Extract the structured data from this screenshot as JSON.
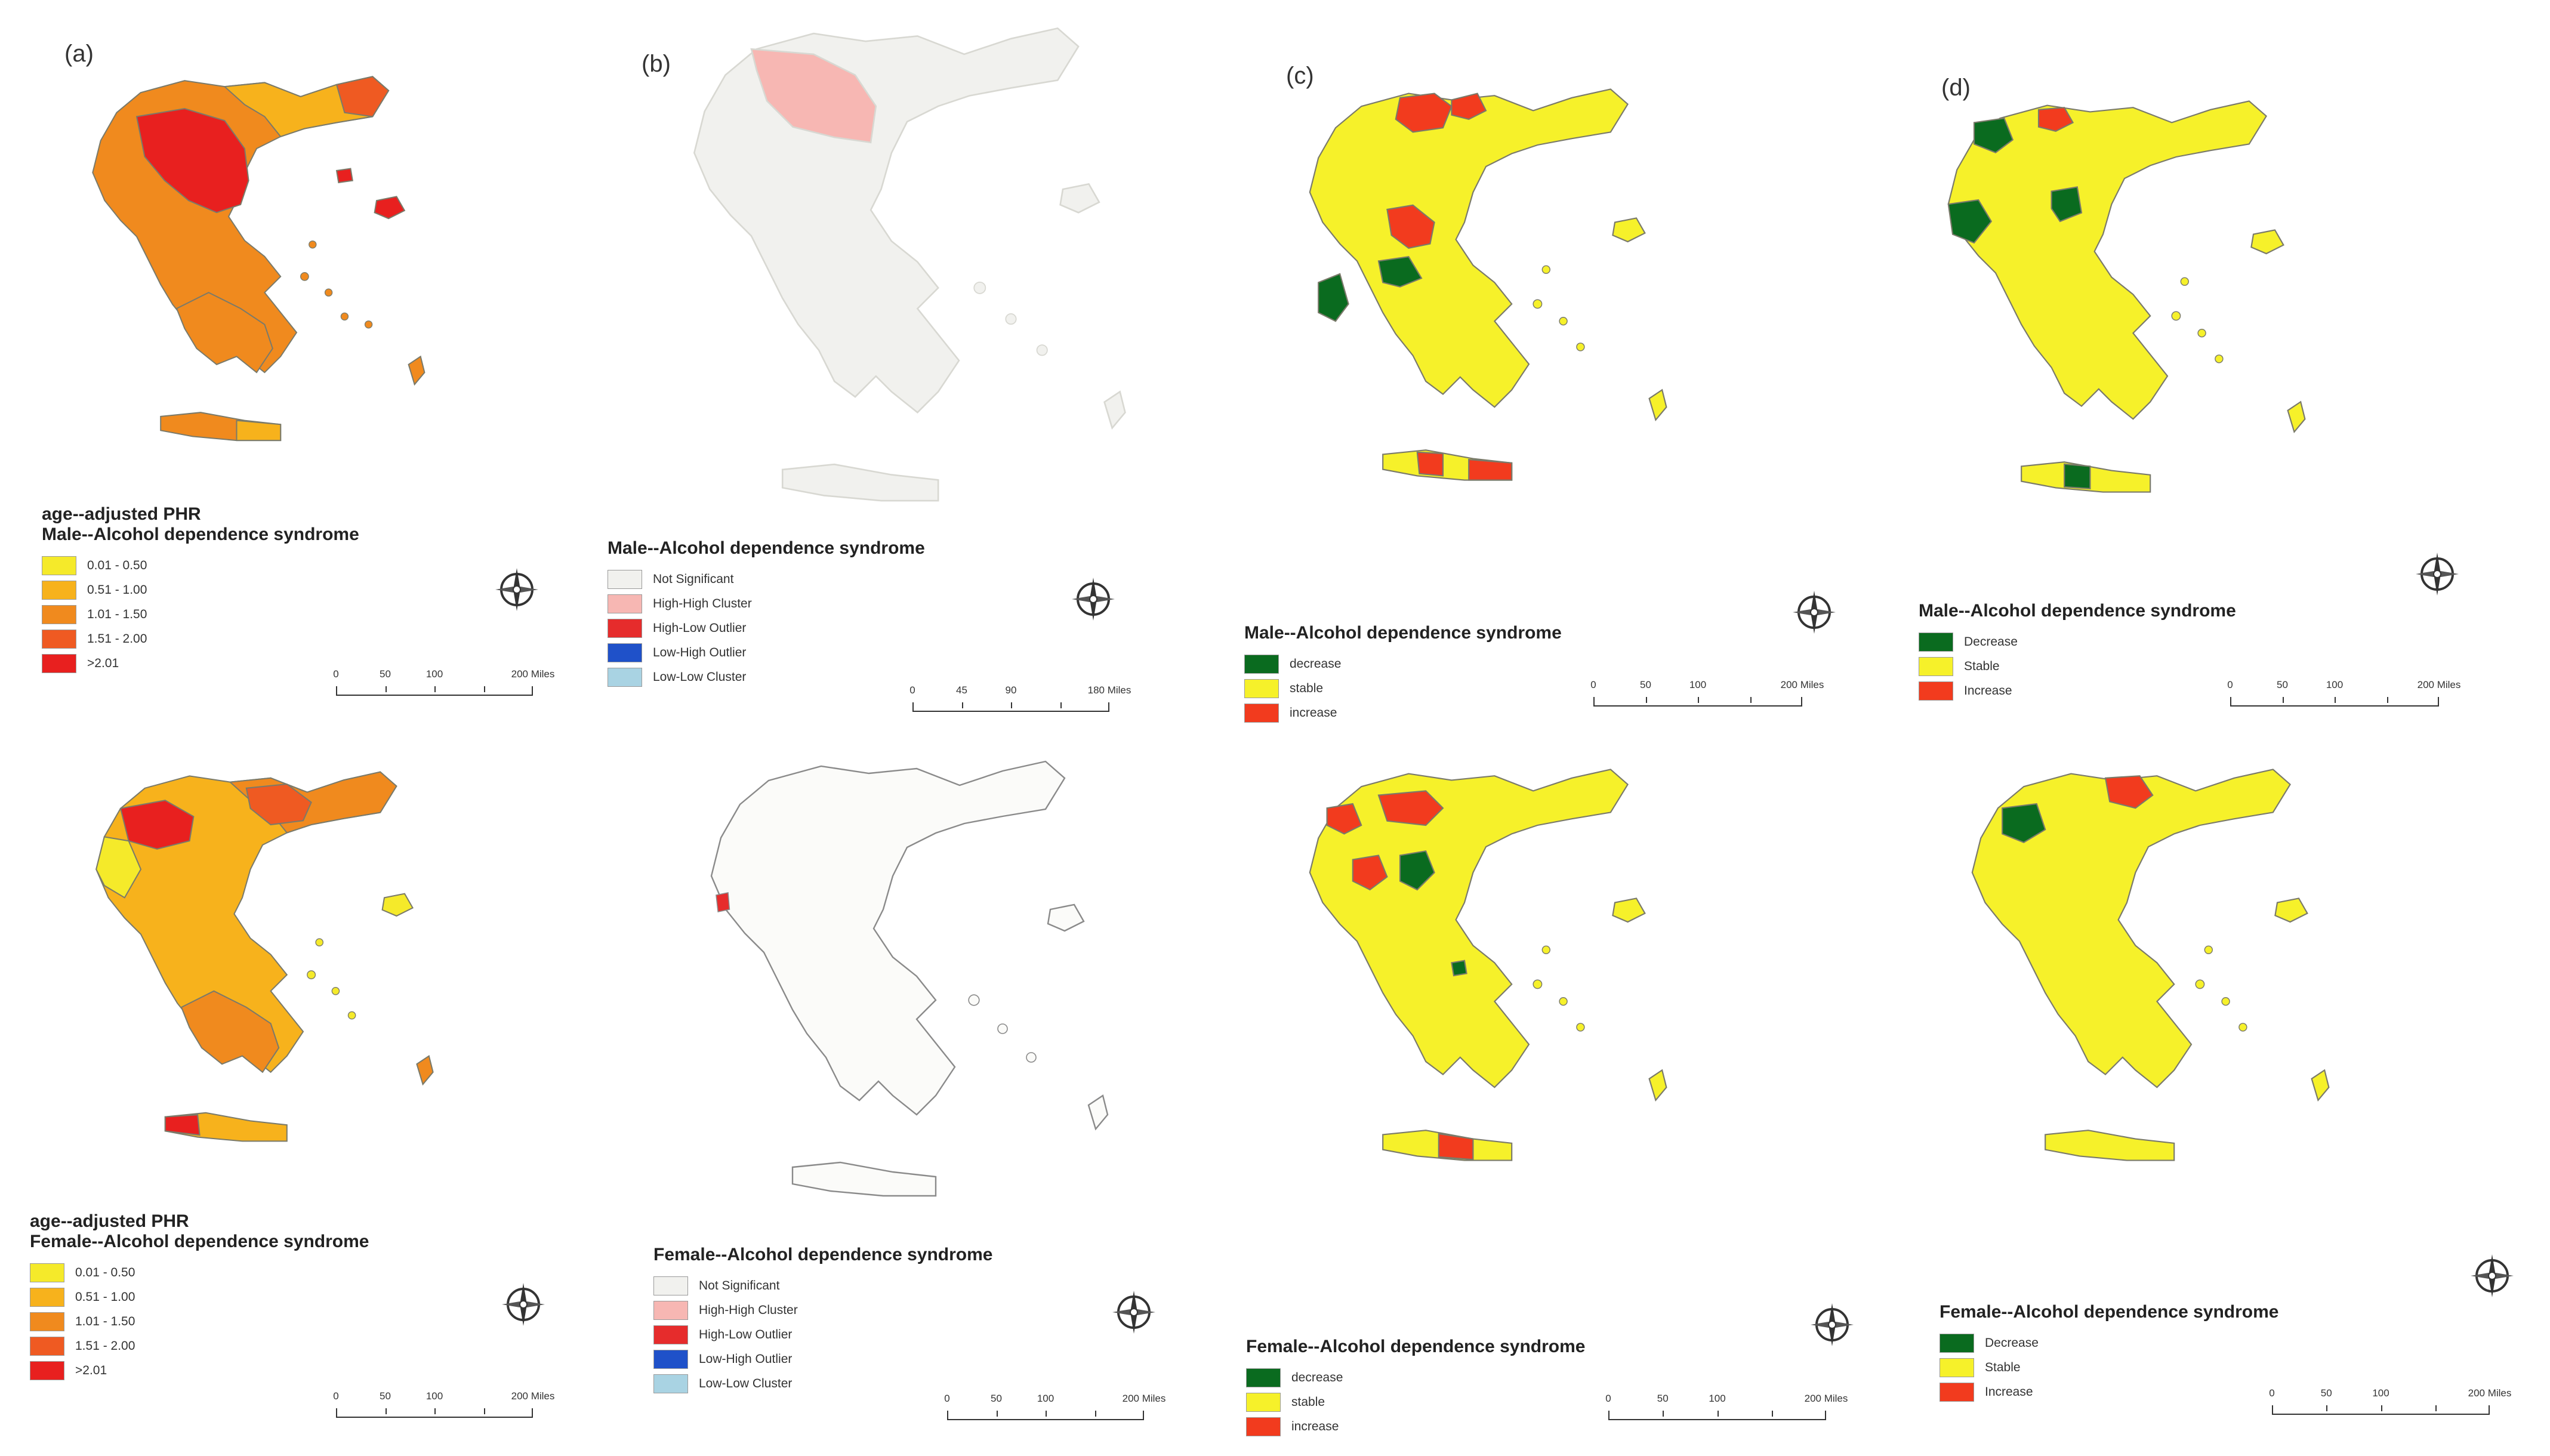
{
  "panels": [
    {
      "label": "(a)",
      "top": {
        "subtitle": "age--adjusted PHR",
        "title": "Male--Alcohol dependence syndrome",
        "items": [
          "0.01 - 0.50",
          "0.51 - 1.00",
          "1.01 - 1.50",
          "1.51 - 2.00",
          ">2.01"
        ],
        "scale": [
          "0",
          "50",
          "100",
          "200 Miles"
        ]
      },
      "bottom": {
        "subtitle": "age--adjusted PHR",
        "title": "Female--Alcohol dependence syndrome",
        "items": [
          "0.01 - 0.50",
          "0.51 - 1.00",
          "1.01 - 1.50",
          "1.51 - 2.00",
          ">2.01"
        ],
        "scale": [
          "0",
          "50",
          "100",
          "200 Miles"
        ]
      }
    },
    {
      "label": "(b)",
      "top": {
        "title": "Male--Alcohol dependence syndrome",
        "items": [
          "Not Significant",
          "High-High Cluster",
          "High-Low Outlier",
          "Low-High Outlier",
          "Low-Low Cluster"
        ],
        "scale": [
          "0",
          "45",
          "90",
          "180 Miles"
        ]
      },
      "bottom": {
        "title": "Female--Alcohol dependence syndrome",
        "items": [
          "Not Significant",
          "High-High Cluster",
          "High-Low Outlier",
          "Low-High Outlier",
          "Low-Low Cluster"
        ],
        "scale": [
          "0",
          "50",
          "100",
          "200 Miles"
        ]
      }
    },
    {
      "label": "(c)",
      "top": {
        "title": "Male--Alcohol dependence syndrome",
        "items": [
          "decrease",
          "stable",
          "increase"
        ],
        "scale": [
          "0",
          "50",
          "100",
          "200 Miles"
        ]
      },
      "bottom": {
        "title": "Female--Alcohol dependence syndrome",
        "items": [
          "decrease",
          "stable",
          "increase"
        ],
        "scale": [
          "0",
          "50",
          "100",
          "200 Miles"
        ]
      }
    },
    {
      "label": "(d)",
      "top": {
        "title": "Male--Alcohol dependence syndrome",
        "items": [
          "Decrease",
          "Stable",
          "Increase"
        ],
        "scale": [
          "0",
          "50",
          "100",
          "200 Miles"
        ]
      },
      "bottom": {
        "title": "Female--Alcohol dependence syndrome",
        "items": [
          "Decrease",
          "Stable",
          "Increase"
        ],
        "scale": [
          "0",
          "50",
          "100",
          "200 Miles"
        ]
      }
    }
  ],
  "colors": {
    "phr": [
      "#f5ea2a",
      "#f7b21c",
      "#f08a1e",
      "#ef5a22",
      "#e8201f"
    ],
    "lisa": [
      "#f1f1ee",
      "#f7b7b3",
      "#e62c2c",
      "#1f51c9",
      "#a9d3e3"
    ],
    "change": [
      "#0a6b1f",
      "#f6f12a",
      "#f23b1e"
    ],
    "outline": "#7a7a6a"
  },
  "icons": {
    "compass": "north-arrow-compass-icon"
  }
}
